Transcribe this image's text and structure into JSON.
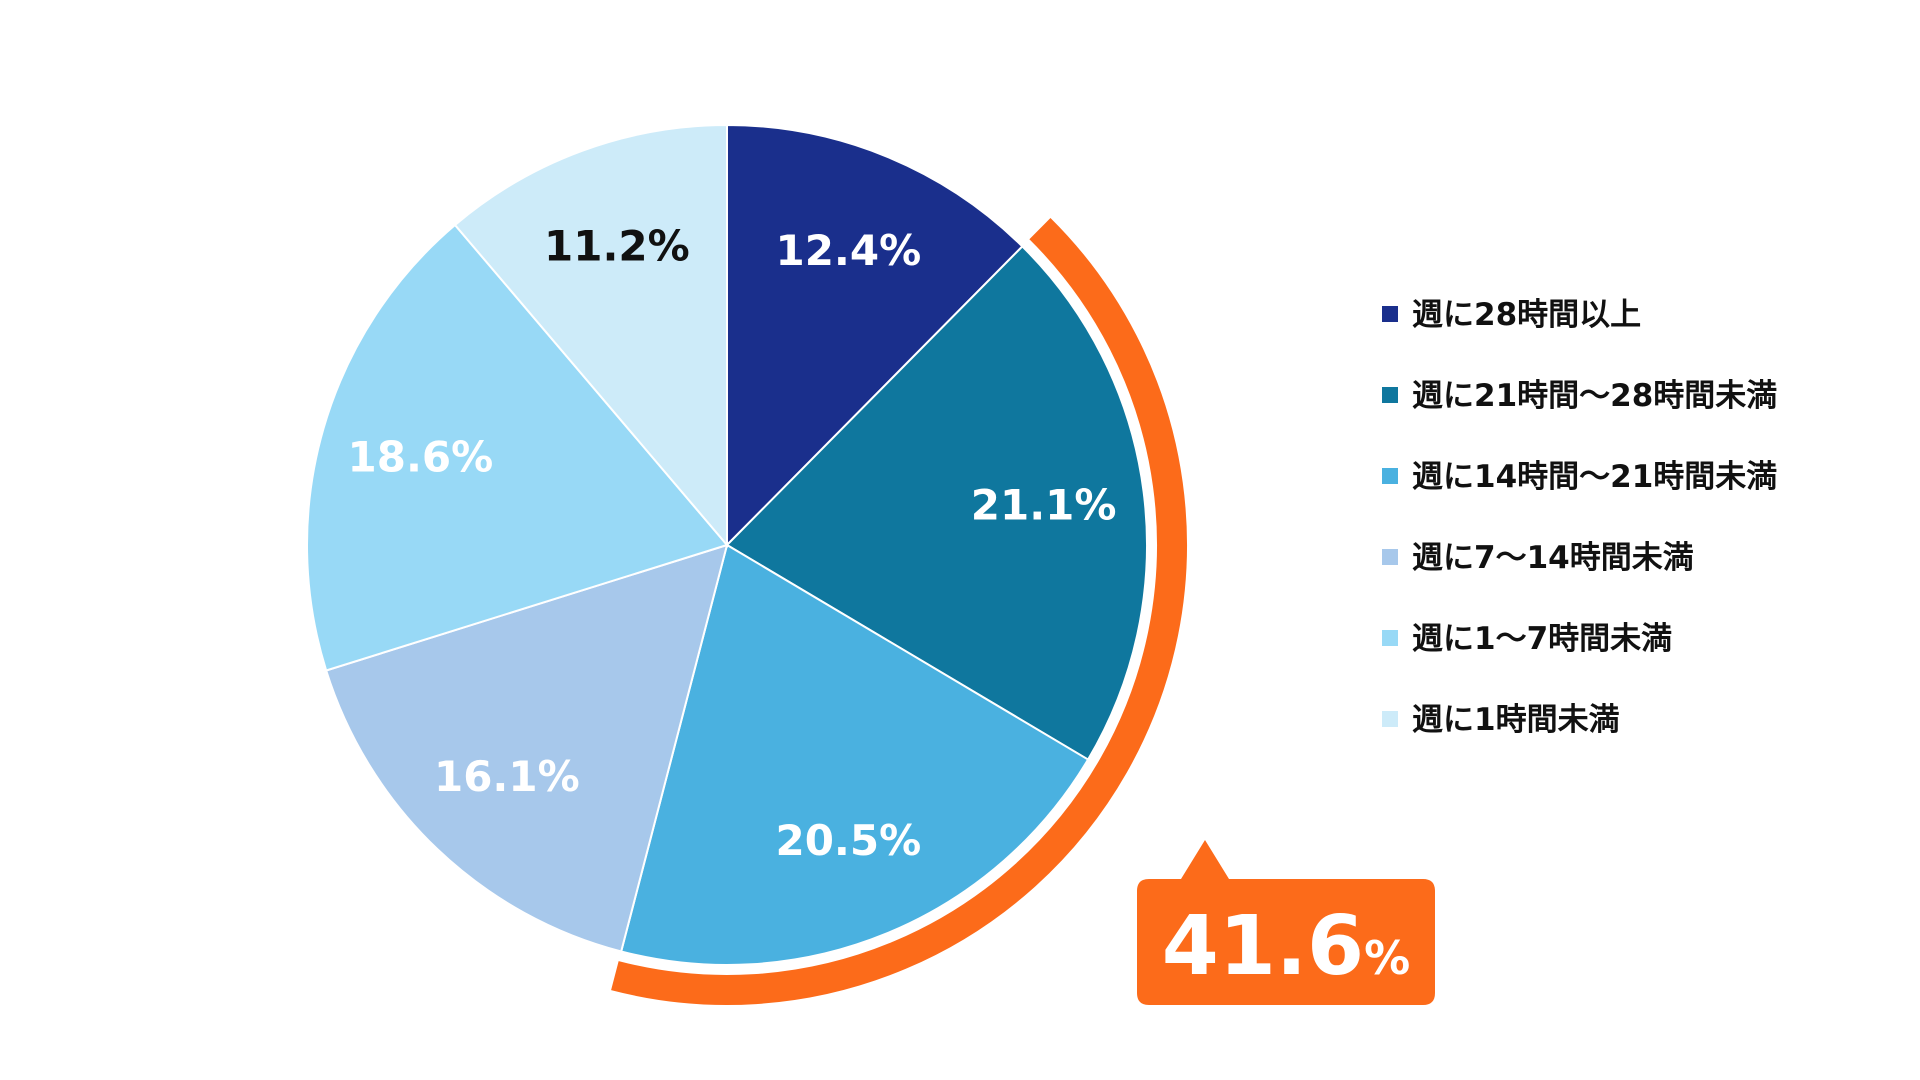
{
  "chart_data": {
    "type": "pie",
    "start": "12 o'clock",
    "direction": "clockwise",
    "slices": [
      {
        "label": "週に28時間以上",
        "value": 12.4,
        "display": "12.4%",
        "color": "#1a2f8c",
        "label_color": "#ffffff"
      },
      {
        "label": "週に21時間〜28時間未満",
        "value": 21.1,
        "display": "21.1%",
        "color": "#0f779e",
        "label_color": "#ffffff"
      },
      {
        "label": "週に14時間〜21時間未満",
        "value": 20.5,
        "display": "20.5%",
        "color": "#4ab1e0",
        "label_color": "#ffffff"
      },
      {
        "label": "週に7〜14時間未満",
        "value": 16.1,
        "display": "16.1%",
        "color": "#a7c8eb",
        "label_color": "#ffffff"
      },
      {
        "label": "週に1〜7時間未満",
        "value": 18.6,
        "display": "18.6%",
        "color": "#98d9f6",
        "label_color": "#ffffff"
      },
      {
        "label": "週に1時間未満",
        "value": 11.2,
        "display": "11.2%",
        "color": "#cdebf9",
        "label_color": "#111111"
      }
    ],
    "legend_position": "right",
    "highlight": {
      "slices": [
        "週に21時間〜28時間未満",
        "週に14時間〜21時間未満"
      ],
      "value": "41.6",
      "unit": "%",
      "color": "#fc6b1a"
    }
  }
}
